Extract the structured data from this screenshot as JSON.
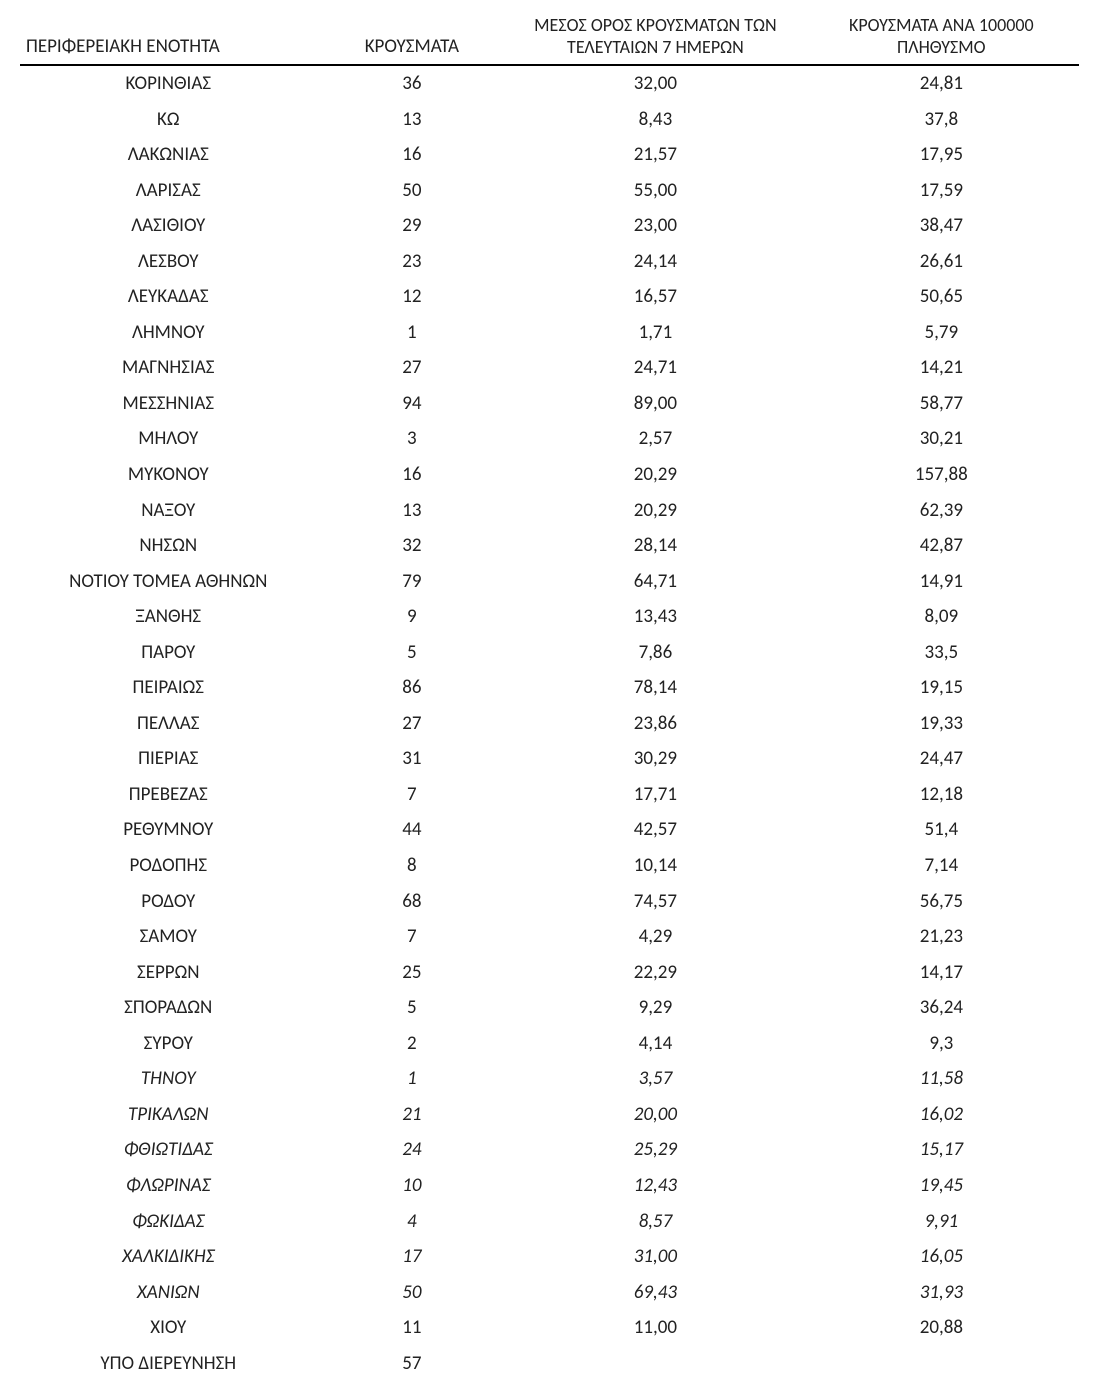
{
  "table": {
    "type": "table",
    "background_color": "#ffffff",
    "text_color": "#222222",
    "border_color": "#000000",
    "font_family": "Calibri, Arial, sans-serif",
    "header_fontsize": 19,
    "cell_fontsize": 19,
    "columns": [
      {
        "key": "region",
        "label": "ΠΕΡΙΦΕΡΕΙΑΚΗ ΕΝΟΤΗΤΑ",
        "align": "left"
      },
      {
        "key": "cases",
        "label": "ΚΡΟΥΣΜΑΤΑ",
        "align": "center"
      },
      {
        "key": "avg7",
        "label": "ΜΕΣΟΣ ΟΡΟΣ ΚΡΟΥΣΜΑΤΩΝ ΤΩΝ ΤΕΛΕΥΤΑΙΩΝ 7 ΗΜΕΡΩΝ",
        "align": "center"
      },
      {
        "key": "per100k",
        "label": "ΚΡΟΥΣΜΑΤΑ ΑΝΑ 100000 ΠΛΗΘΥΣΜΟ",
        "align": "center"
      }
    ],
    "rows": [
      {
        "region": "ΚΟΡΙΝΘΙΑΣ",
        "cases": "36",
        "avg7": "32,00",
        "per100k": "24,81",
        "italic": false
      },
      {
        "region": "ΚΩ",
        "cases": "13",
        "avg7": "8,43",
        "per100k": "37,8",
        "italic": false
      },
      {
        "region": "ΛΑΚΩΝΙΑΣ",
        "cases": "16",
        "avg7": "21,57",
        "per100k": "17,95",
        "italic": false
      },
      {
        "region": "ΛΑΡΙΣΑΣ",
        "cases": "50",
        "avg7": "55,00",
        "per100k": "17,59",
        "italic": false
      },
      {
        "region": "ΛΑΣΙΘΙΟΥ",
        "cases": "29",
        "avg7": "23,00",
        "per100k": "38,47",
        "italic": false
      },
      {
        "region": "ΛΕΣΒΟΥ",
        "cases": "23",
        "avg7": "24,14",
        "per100k": "26,61",
        "italic": false
      },
      {
        "region": "ΛΕΥΚΑΔΑΣ",
        "cases": "12",
        "avg7": "16,57",
        "per100k": "50,65",
        "italic": false
      },
      {
        "region": "ΛΗΜΝΟΥ",
        "cases": "1",
        "avg7": "1,71",
        "per100k": "5,79",
        "italic": false
      },
      {
        "region": "ΜΑΓΝΗΣΙΑΣ",
        "cases": "27",
        "avg7": "24,71",
        "per100k": "14,21",
        "italic": false
      },
      {
        "region": "ΜΕΣΣΗΝΙΑΣ",
        "cases": "94",
        "avg7": "89,00",
        "per100k": "58,77",
        "italic": false
      },
      {
        "region": "ΜΗΛΟΥ",
        "cases": "3",
        "avg7": "2,57",
        "per100k": "30,21",
        "italic": false
      },
      {
        "region": "ΜΥΚΟΝΟΥ",
        "cases": "16",
        "avg7": "20,29",
        "per100k": "157,88",
        "italic": false
      },
      {
        "region": "ΝΑΞΟΥ",
        "cases": "13",
        "avg7": "20,29",
        "per100k": "62,39",
        "italic": false
      },
      {
        "region": "ΝΗΣΩΝ",
        "cases": "32",
        "avg7": "28,14",
        "per100k": "42,87",
        "italic": false
      },
      {
        "region": "ΝΟΤΙΟΥ ΤΟΜΕΑ ΑΘΗΝΩΝ",
        "cases": "79",
        "avg7": "64,71",
        "per100k": "14,91",
        "italic": false
      },
      {
        "region": "ΞΑΝΘΗΣ",
        "cases": "9",
        "avg7": "13,43",
        "per100k": "8,09",
        "italic": false
      },
      {
        "region": "ΠΑΡΟΥ",
        "cases": "5",
        "avg7": "7,86",
        "per100k": "33,5",
        "italic": false
      },
      {
        "region": "ΠΕΙΡΑΙΩΣ",
        "cases": "86",
        "avg7": "78,14",
        "per100k": "19,15",
        "italic": false
      },
      {
        "region": "ΠΕΛΛΑΣ",
        "cases": "27",
        "avg7": "23,86",
        "per100k": "19,33",
        "italic": false
      },
      {
        "region": "ΠΙΕΡΙΑΣ",
        "cases": "31",
        "avg7": "30,29",
        "per100k": "24,47",
        "italic": false
      },
      {
        "region": "ΠΡΕΒΕΖΑΣ",
        "cases": "7",
        "avg7": "17,71",
        "per100k": "12,18",
        "italic": false
      },
      {
        "region": "ΡΕΘΥΜΝΟΥ",
        "cases": "44",
        "avg7": "42,57",
        "per100k": "51,4",
        "italic": false
      },
      {
        "region": "ΡΟΔΟΠΗΣ",
        "cases": "8",
        "avg7": "10,14",
        "per100k": "7,14",
        "italic": false
      },
      {
        "region": "ΡΟΔΟΥ",
        "cases": "68",
        "avg7": "74,57",
        "per100k": "56,75",
        "italic": false
      },
      {
        "region": "ΣΑΜΟΥ",
        "cases": "7",
        "avg7": "4,29",
        "per100k": "21,23",
        "italic": false
      },
      {
        "region": "ΣΕΡΡΩΝ",
        "cases": "25",
        "avg7": "22,29",
        "per100k": "14,17",
        "italic": false
      },
      {
        "region": "ΣΠΟΡΑΔΩΝ",
        "cases": "5",
        "avg7": "9,29",
        "per100k": "36,24",
        "italic": false
      },
      {
        "region": "ΣΥΡΟΥ",
        "cases": "2",
        "avg7": "4,14",
        "per100k": "9,3",
        "italic": false
      },
      {
        "region": "ΤΗΝΟΥ",
        "cases": "1",
        "avg7": "3,57",
        "per100k": "11,58",
        "italic": true
      },
      {
        "region": "ΤΡΙΚΑΛΩΝ",
        "cases": "21",
        "avg7": "20,00",
        "per100k": "16,02",
        "italic": true
      },
      {
        "region": "ΦΘΙΩΤΙΔΑΣ",
        "cases": "24",
        "avg7": "25,29",
        "per100k": "15,17",
        "italic": true
      },
      {
        "region": "ΦΛΩΡΙΝΑΣ",
        "cases": "10",
        "avg7": "12,43",
        "per100k": "19,45",
        "italic": true
      },
      {
        "region": "ΦΩΚΙΔΑΣ",
        "cases": "4",
        "avg7": "8,57",
        "per100k": "9,91",
        "italic": true
      },
      {
        "region": "ΧΑΛΚΙΔΙΚΗΣ",
        "cases": "17",
        "avg7": "31,00",
        "per100k": "16,05",
        "italic": true
      },
      {
        "region": "ΧΑΝΙΩΝ",
        "cases": "50",
        "avg7": "69,43",
        "per100k": "31,93",
        "italic": true
      },
      {
        "region": "ΧΙΟΥ",
        "cases": "11",
        "avg7": "11,00",
        "per100k": "20,88",
        "italic": false
      },
      {
        "region": "ΥΠΟ ΔΙΕΡΕΥΝΗΣΗ",
        "cases": "57",
        "avg7": "",
        "per100k": "",
        "italic": false
      }
    ]
  }
}
